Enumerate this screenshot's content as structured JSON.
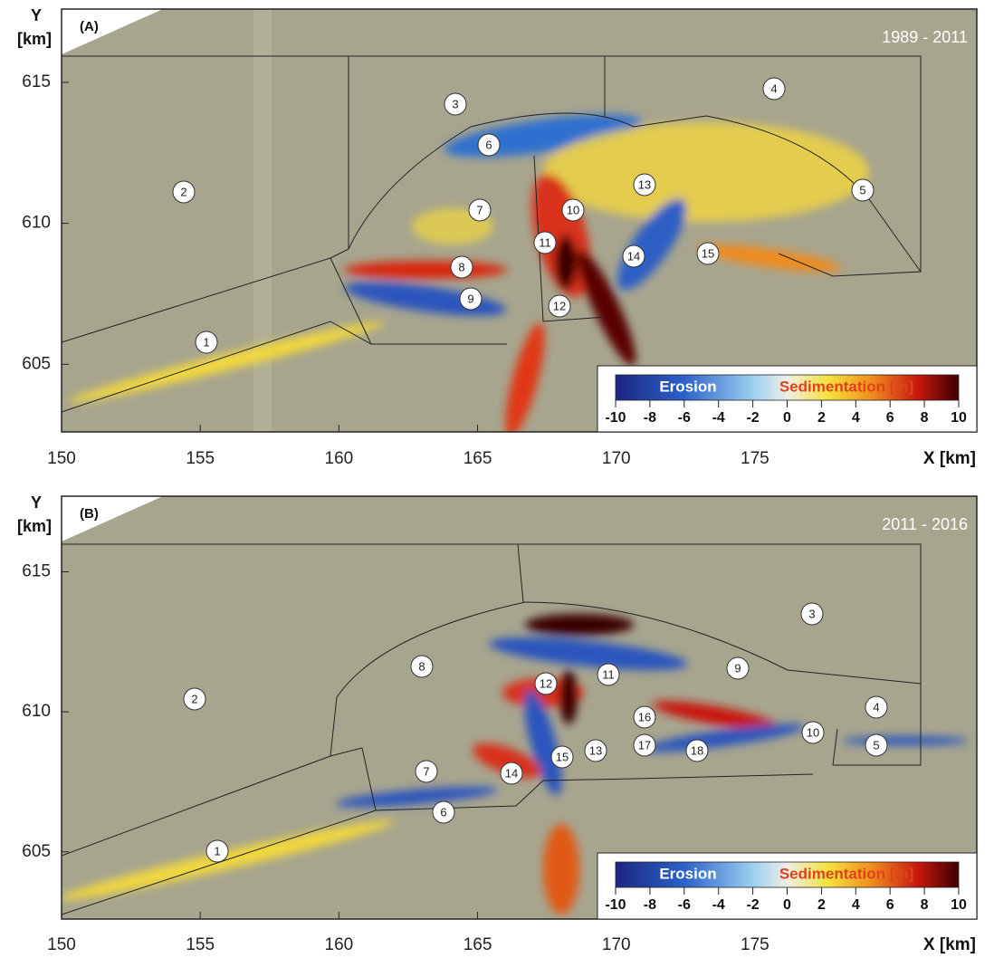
{
  "panels": [
    {
      "label": "(A)",
      "period": "1989 - 2011",
      "y_title": [
        "Y",
        "[km]"
      ],
      "x_title": "X [km]",
      "xlim": [
        150,
        183
      ],
      "xticks": [
        150,
        155,
        160,
        165,
        170,
        175
      ],
      "ylim": [
        602.6,
        617.6
      ],
      "yticks": [
        605,
        610,
        615
      ],
      "regions": [
        "1",
        "2",
        "3",
        "4",
        "5",
        "6",
        "7",
        "8",
        "9",
        "10",
        "11",
        "12",
        "13",
        "14",
        "15"
      ],
      "colorbar": {
        "erosion_label": "Erosion",
        "sedimentation_label": "Sedimentation [m]",
        "lim": [
          -10,
          10
        ],
        "ticks": [
          -10,
          -8,
          -6,
          -4,
          -2,
          0,
          2,
          4,
          6,
          8,
          10
        ]
      }
    },
    {
      "label": "(B)",
      "period": "2011 - 2016",
      "y_title": [
        "Y",
        "[km]"
      ],
      "x_title": "X [km]",
      "xlim": [
        150,
        183
      ],
      "xticks": [
        150,
        155,
        160,
        165,
        170,
        175
      ],
      "ylim": [
        602.6,
        617.7
      ],
      "yticks": [
        605,
        610,
        615
      ],
      "regions": [
        "1",
        "2",
        "3",
        "4",
        "5",
        "6",
        "7",
        "8",
        "9",
        "10",
        "11",
        "12",
        "13",
        "14",
        "15",
        "16",
        "17",
        "18"
      ],
      "colorbar": {
        "erosion_label": "Erosion",
        "sedimentation_label": "Sedimentation [m]",
        "lim": [
          -10,
          10
        ],
        "ticks": [
          -10,
          -8,
          -6,
          -4,
          -2,
          0,
          2,
          4,
          6,
          8,
          10
        ]
      }
    }
  ]
}
